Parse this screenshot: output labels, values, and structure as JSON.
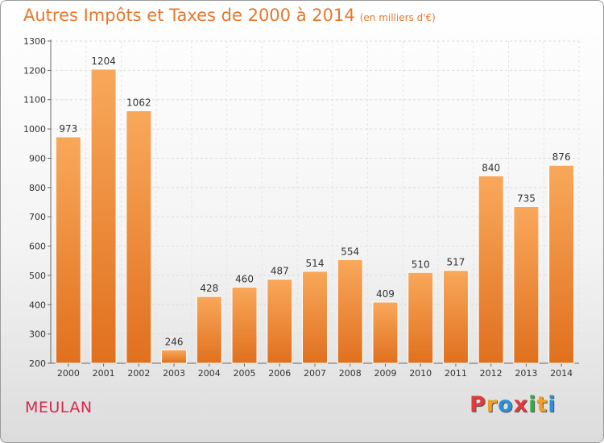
{
  "header": {
    "title": "Autres Impôts et Taxes de 2000 à 2014",
    "unit": "(en milliers d'€)"
  },
  "footer": {
    "location": "MEULAN",
    "logo": "Proxiti",
    "logo_colors": [
      "#e23b3b",
      "#f0a020",
      "#2d8fd6",
      "#e23b3b",
      "#2fae3c",
      "#f0a020",
      "#2d8fd6"
    ]
  },
  "colors": {
    "bar_light": "#f9a85b",
    "bar_dark": "#e0701e",
    "title": "#e8772b",
    "location": "#d9264a"
  },
  "chart_data": {
    "type": "bar",
    "title": "Autres Impôts et Taxes de 2000 à 2014 (en milliers d'€)",
    "xlabel": "",
    "ylabel": "",
    "categories": [
      "2000",
      "2001",
      "2002",
      "2003",
      "2004",
      "2005",
      "2006",
      "2007",
      "2008",
      "2009",
      "2010",
      "2011",
      "2012",
      "2013",
      "2014"
    ],
    "values": [
      973,
      1204,
      1062,
      246,
      428,
      460,
      487,
      514,
      554,
      409,
      510,
      517,
      840,
      735,
      876
    ],
    "ylim": [
      200,
      1300
    ],
    "yticks": [
      200,
      300,
      400,
      500,
      600,
      700,
      800,
      900,
      1000,
      1100,
      1200,
      1300
    ],
    "grid": true,
    "data_labels": true
  }
}
